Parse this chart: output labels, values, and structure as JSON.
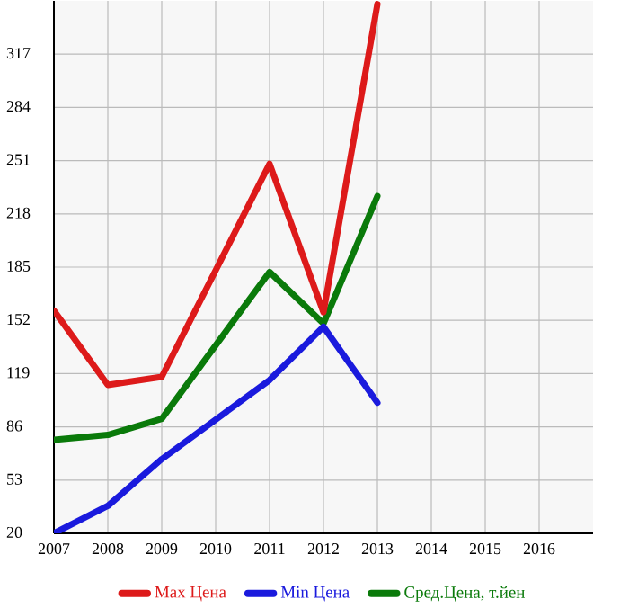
{
  "chart_data": {
    "type": "line",
    "xlim": [
      2007,
      2017
    ],
    "ylim": [
      20,
      350
    ],
    "xticks": [
      2007,
      2008,
      2009,
      2010,
      2011,
      2012,
      2013,
      2014,
      2015,
      2016
    ],
    "yticks": [
      20,
      53,
      86,
      119,
      152,
      185,
      218,
      251,
      284,
      317
    ],
    "grid": true,
    "legend": "bottom",
    "marker": "none",
    "line_style": "solid",
    "series": [
      {
        "name": "Max Цена",
        "color": "#dd1a1a",
        "x": [
          2007,
          2008,
          2009,
          2011,
          2012,
          2013
        ],
        "values": [
          158,
          112,
          117,
          249,
          157,
          348
        ]
      },
      {
        "name": "Min Цена",
        "color": "#1a1add",
        "x": [
          2007,
          2008,
          2009,
          2011,
          2012,
          2013
        ],
        "values": [
          20,
          37,
          66,
          115,
          148,
          101
        ]
      },
      {
        "name": "Сред.Цена, т.йен",
        "color": "#0a7a0a",
        "x": [
          2007,
          2008,
          2009,
          2011,
          2012,
          2013
        ],
        "values": [
          78,
          81,
          91,
          182,
          150,
          229
        ]
      }
    ]
  }
}
